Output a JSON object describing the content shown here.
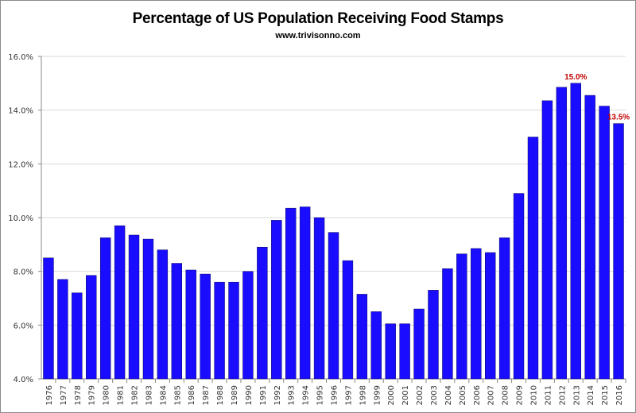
{
  "chart_data": {
    "type": "bar",
    "title": "Percentage of US Population Receiving Food Stamps",
    "subtitle": "www.trivisonno.com",
    "xlabel": "",
    "ylabel": "",
    "ylim": [
      4,
      16
    ],
    "yticks": [
      4,
      6,
      8,
      10,
      12,
      14,
      16
    ],
    "ytick_labels": [
      "4.0%",
      "6.0%",
      "8.0%",
      "10.0%",
      "12.0%",
      "14.0%",
      "16.0%"
    ],
    "grid": true,
    "categories": [
      "1976",
      "1977",
      "1978",
      "1979",
      "1980",
      "1981",
      "1982",
      "1983",
      "1984",
      "1985",
      "1986",
      "1987",
      "1988",
      "1989",
      "1990",
      "1991",
      "1992",
      "1993",
      "1994",
      "1995",
      "1996",
      "1997",
      "1998",
      "1999",
      "2000",
      "2001",
      "2002",
      "2003",
      "2004",
      "2005",
      "2006",
      "2007",
      "2008",
      "2009",
      "2010",
      "2011",
      "2012",
      "2013",
      "2014",
      "2015",
      "2016"
    ],
    "values": [
      8.5,
      7.7,
      7.2,
      7.85,
      9.25,
      9.7,
      9.35,
      9.2,
      8.8,
      8.3,
      8.05,
      7.9,
      7.6,
      7.6,
      8.0,
      8.9,
      9.9,
      10.35,
      10.4,
      10.0,
      9.45,
      8.4,
      7.15,
      6.5,
      6.05,
      6.05,
      6.6,
      7.3,
      8.1,
      8.65,
      8.85,
      8.7,
      9.25,
      10.9,
      13.0,
      14.35,
      14.85,
      15.0,
      14.55,
      14.15,
      13.5
    ],
    "data_labels": [
      {
        "category": "2013",
        "text": "15.0%"
      },
      {
        "category": "2016",
        "text": "13.5%"
      }
    ],
    "colors": {
      "bar": "#1a0dff",
      "label": "#c00000",
      "grid": "#d9d9d9"
    }
  }
}
